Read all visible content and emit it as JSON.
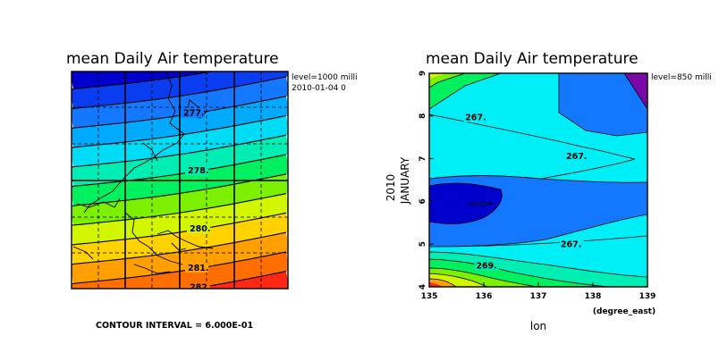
{
  "chart_data": [
    {
      "type": "contour-map",
      "title": "mean Daily Air temperature",
      "info_lines": [
        "level=1000 milli",
        "2010-01-04 0"
      ],
      "contour_labels": [
        "277.",
        "278.",
        "280.",
        "281.",
        "282."
      ],
      "contour_interval_text": "CONTOUR INTERVAL = 6.000E-01",
      "band_colors": [
        "#0000cd",
        "#0a3cf0",
        "#1478ff",
        "#00aaff",
        "#00dcf5",
        "#00eeb4",
        "#00f060",
        "#7cf000",
        "#d2f500",
        "#ffd200",
        "#ffa000",
        "#ff6e00",
        "#ff2814"
      ]
    },
    {
      "type": "contour",
      "title": "mean Daily Air temperature",
      "info_lines": [
        "level=850 milli"
      ],
      "xlabel": "lon",
      "xunits": "(degree_east)",
      "ylabel_lines": [
        "2010",
        "JANUARY"
      ],
      "x_ticks": [
        135,
        136,
        137,
        138,
        139
      ],
      "y_ticks": [
        4,
        5,
        6,
        7,
        8,
        9
      ],
      "xlim": [
        135,
        139
      ],
      "ylim": [
        4,
        9
      ],
      "contour_labels": [
        "267.",
        "267.",
        "267.",
        "269."
      ]
    }
  ]
}
